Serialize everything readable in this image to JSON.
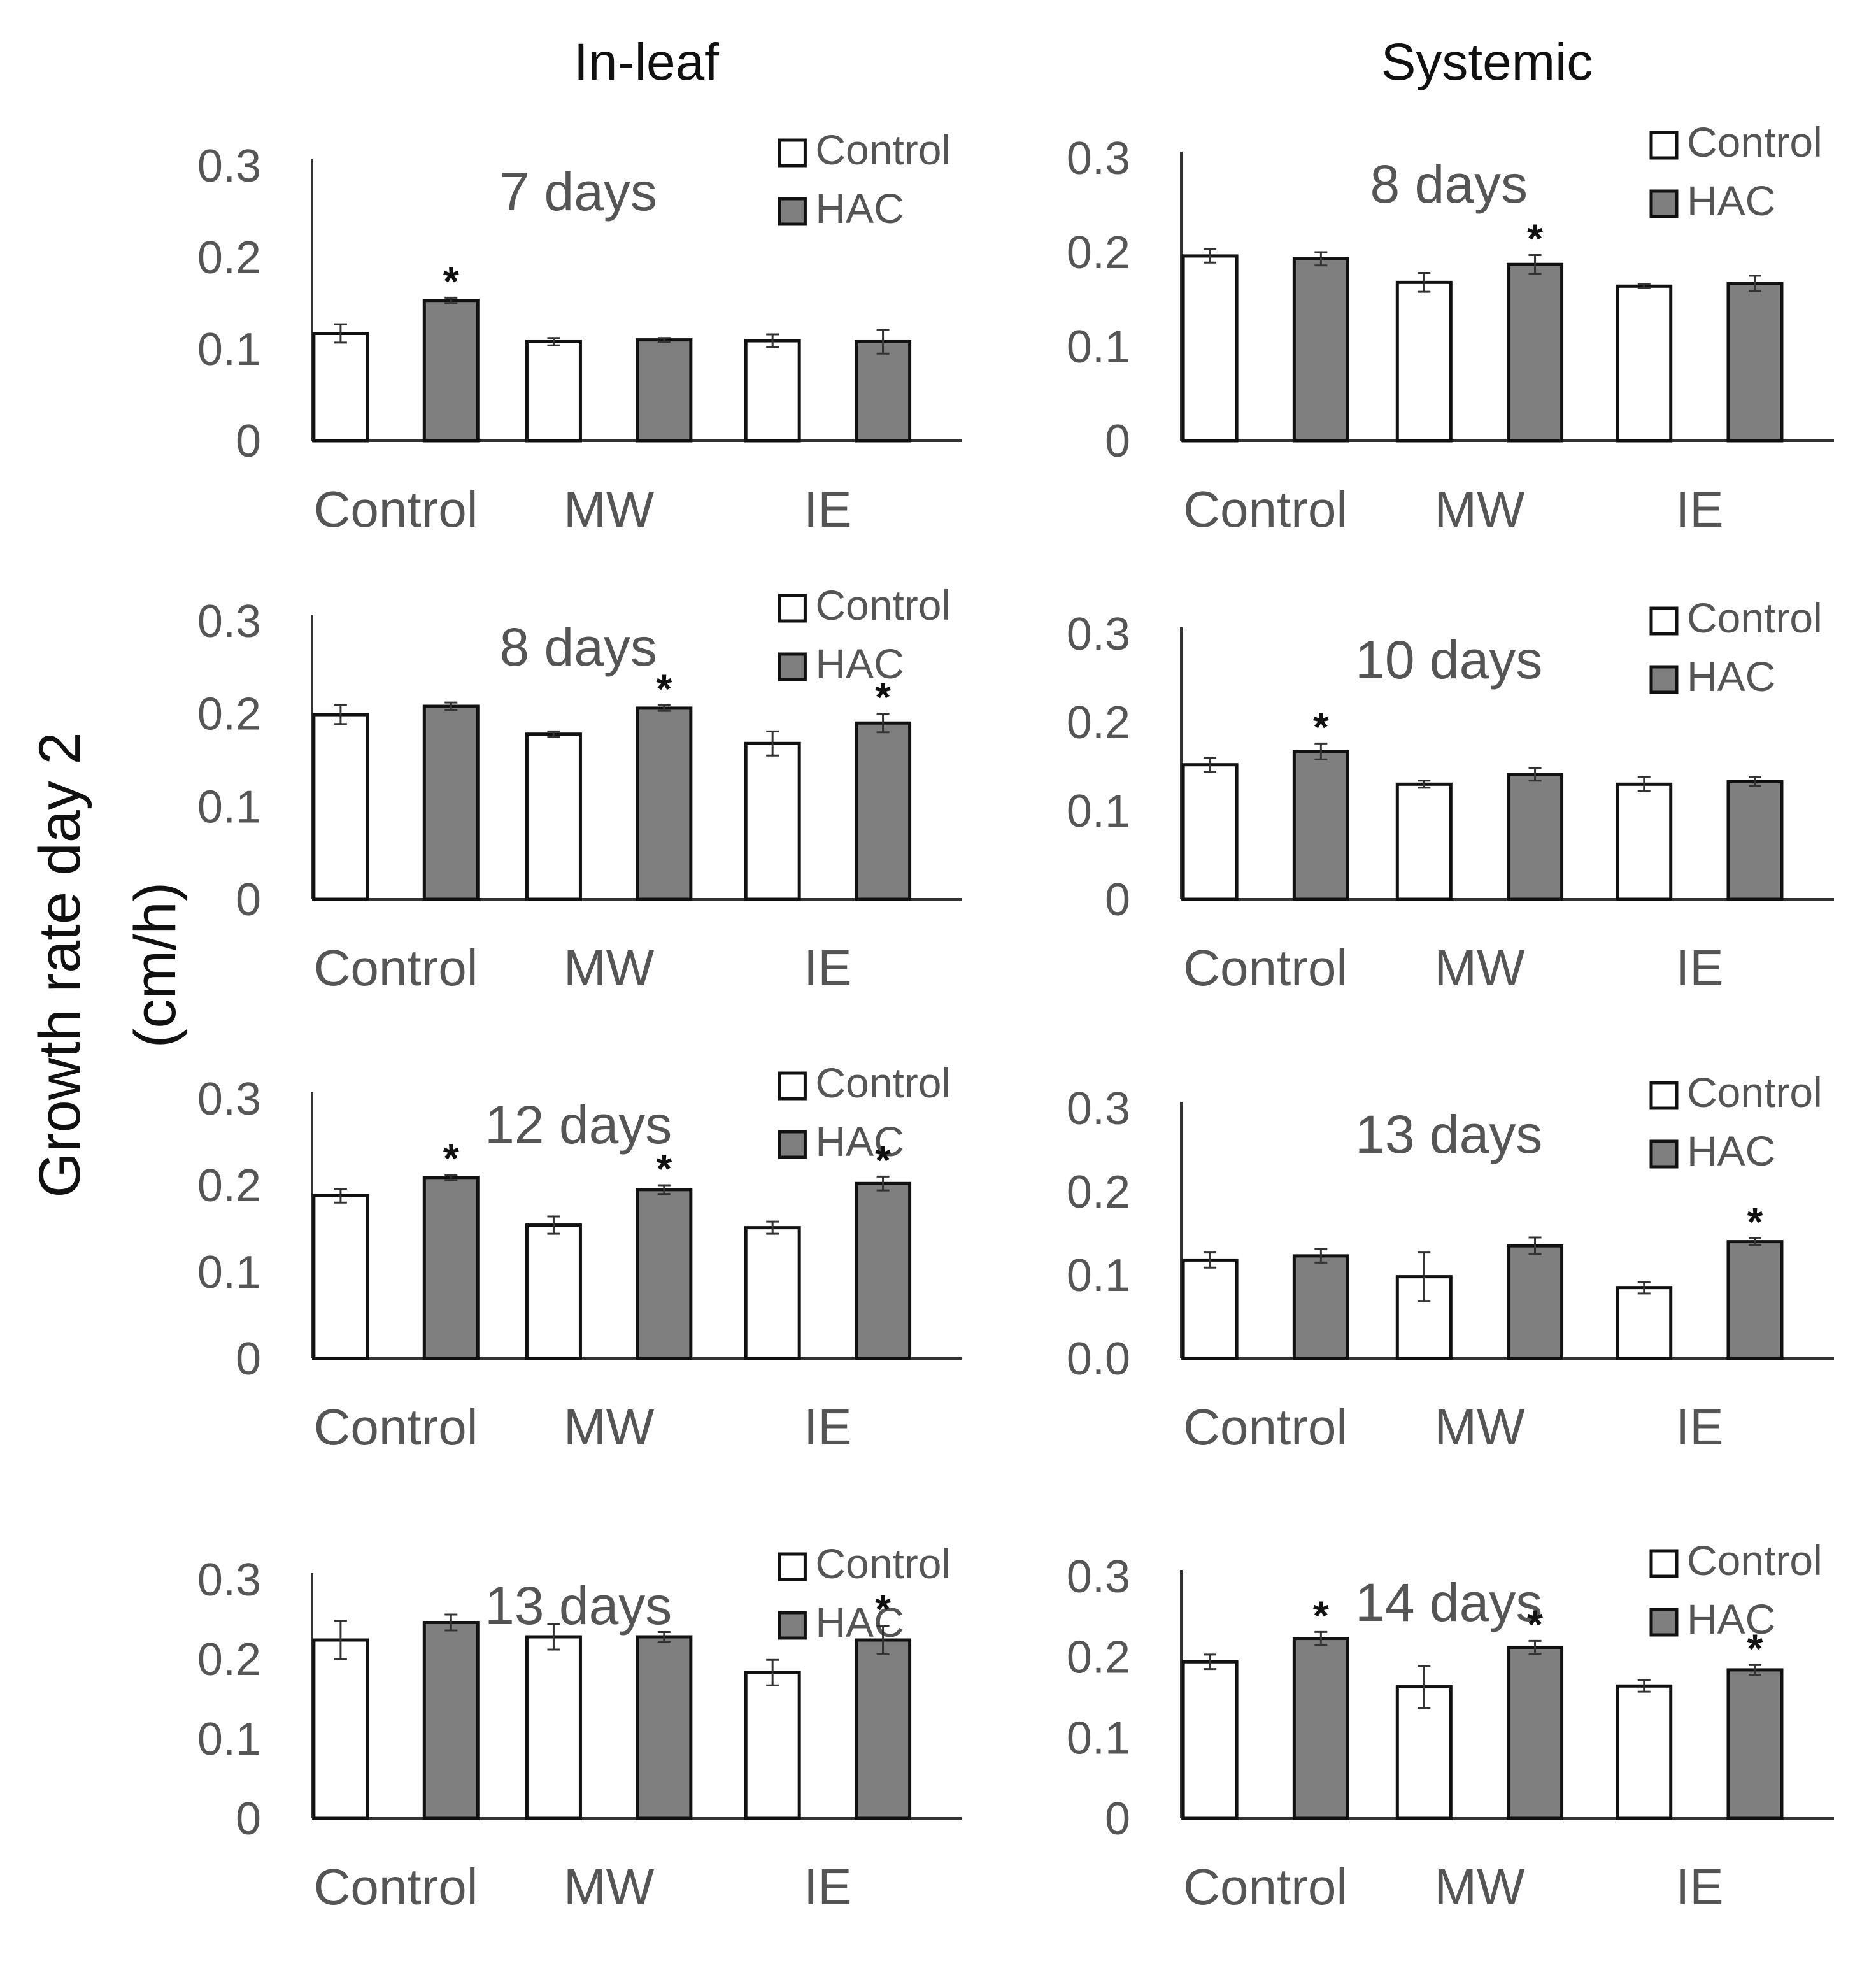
{
  "figure": {
    "columns": [
      "In-leaf",
      "Systemic"
    ],
    "ylabel_line1": "Growth rate day 2",
    "ylabel_line2": "(cm/h)"
  },
  "chart_data": [
    {
      "type": "bar",
      "panel": "In-leaf",
      "title": "7 days",
      "categories": [
        "Control",
        "MW",
        "IE"
      ],
      "ylim": [
        0,
        0.3
      ],
      "yticks": [
        "0",
        "0.1",
        "0.2",
        "0.3"
      ],
      "series": [
        {
          "name": "Control",
          "color": "#ffffff",
          "values": [
            0.117,
            0.108,
            0.109
          ],
          "errors": [
            0.01,
            0.004,
            0.007
          ]
        },
        {
          "name": "HAC",
          "color": "#7f7f7f",
          "values": [
            0.153,
            0.11,
            0.108
          ],
          "errors": [
            0.003,
            0.002,
            0.013
          ]
        }
      ],
      "significant": [
        [
          false,
          false,
          false
        ],
        [
          true,
          false,
          false
        ]
      ]
    },
    {
      "type": "bar",
      "panel": "Systemic",
      "title": "8 days",
      "categories": [
        "Control",
        "MW",
        "IE"
      ],
      "ylim": [
        0,
        0.3
      ],
      "yticks": [
        "0",
        "0.1",
        "0.2",
        "0.3"
      ],
      "series": [
        {
          "name": "Control",
          "color": "#ffffff",
          "values": [
            0.196,
            0.168,
            0.164
          ],
          "errors": [
            0.007,
            0.01,
            0.002
          ]
        },
        {
          "name": "HAC",
          "color": "#7f7f7f",
          "values": [
            0.193,
            0.187,
            0.167
          ],
          "errors": [
            0.007,
            0.01,
            0.008
          ]
        }
      ],
      "significant": [
        [
          false,
          false,
          false
        ],
        [
          false,
          true,
          false
        ]
      ]
    },
    {
      "type": "bar",
      "panel": "In-leaf",
      "title": "8 days",
      "categories": [
        "Control",
        "MW",
        "IE"
      ],
      "ylim": [
        0,
        0.3
      ],
      "yticks": [
        "0",
        "0.1",
        "0.2",
        "0.3"
      ],
      "series": [
        {
          "name": "Control",
          "color": "#ffffff",
          "values": [
            0.199,
            0.178,
            0.168
          ],
          "errors": [
            0.01,
            0.003,
            0.013
          ]
        },
        {
          "name": "HAC",
          "color": "#7f7f7f",
          "values": [
            0.208,
            0.206,
            0.19
          ],
          "errors": [
            0.004,
            0.003,
            0.01
          ]
        }
      ],
      "significant": [
        [
          false,
          false,
          false
        ],
        [
          false,
          true,
          true
        ]
      ]
    },
    {
      "type": "bar",
      "panel": "Systemic",
      "title": "10 days",
      "categories": [
        "Control",
        "MW",
        "IE"
      ],
      "ylim": [
        0,
        0.3
      ],
      "yticks": [
        "0",
        "0.1",
        "0.2",
        "0.3"
      ],
      "series": [
        {
          "name": "Control",
          "color": "#ffffff",
          "values": [
            0.152,
            0.13,
            0.13
          ],
          "errors": [
            0.008,
            0.004,
            0.008
          ]
        },
        {
          "name": "HAC",
          "color": "#7f7f7f",
          "values": [
            0.167,
            0.141,
            0.133
          ],
          "errors": [
            0.009,
            0.007,
            0.005
          ]
        }
      ],
      "significant": [
        [
          false,
          false,
          false
        ],
        [
          true,
          false,
          false
        ]
      ]
    },
    {
      "type": "bar",
      "panel": "In-leaf",
      "title": "12 days",
      "categories": [
        "Control",
        "MW",
        "IE"
      ],
      "ylim": [
        0,
        0.3
      ],
      "yticks": [
        "0",
        "0.1",
        "0.2",
        "0.3"
      ],
      "series": [
        {
          "name": "Control",
          "color": "#ffffff",
          "values": [
            0.188,
            0.154,
            0.151
          ],
          "errors": [
            0.008,
            0.01,
            0.007
          ]
        },
        {
          "name": "HAC",
          "color": "#7f7f7f",
          "values": [
            0.209,
            0.195,
            0.202
          ],
          "errors": [
            0.003,
            0.005,
            0.008
          ]
        }
      ],
      "significant": [
        [
          false,
          false,
          false
        ],
        [
          true,
          true,
          true
        ]
      ]
    },
    {
      "type": "bar",
      "panel": "Systemic",
      "title": "13 days",
      "categories": [
        "Control",
        "MW",
        "IE"
      ],
      "ylim": [
        0,
        0.3
      ],
      "yticks": [
        "0.0",
        "0.1",
        "0.2",
        "0.3"
      ],
      "series": [
        {
          "name": "Control",
          "color": "#ffffff",
          "values": [
            0.118,
            0.098,
            0.085
          ],
          "errors": [
            0.009,
            0.029,
            0.007
          ]
        },
        {
          "name": "HAC",
          "color": "#7f7f7f",
          "values": [
            0.123,
            0.135,
            0.14
          ],
          "errors": [
            0.008,
            0.01,
            0.004
          ]
        }
      ],
      "significant": [
        [
          false,
          false,
          false
        ],
        [
          false,
          false,
          true
        ]
      ]
    },
    {
      "type": "bar",
      "panel": "In-leaf",
      "title": "13 days",
      "categories": [
        "Control",
        "MW",
        "IE"
      ],
      "ylim": [
        0,
        0.3
      ],
      "yticks": [
        "0",
        "0.1",
        "0.2",
        "0.3"
      ],
      "series": [
        {
          "name": "Control",
          "color": "#ffffff",
          "values": [
            0.224,
            0.228,
            0.183
          ],
          "errors": [
            0.024,
            0.016,
            0.016
          ]
        },
        {
          "name": "HAC",
          "color": "#7f7f7f",
          "values": [
            0.246,
            0.228,
            0.224
          ],
          "errors": [
            0.01,
            0.006,
            0.018
          ]
        }
      ],
      "significant": [
        [
          false,
          false,
          false
        ],
        [
          false,
          false,
          true
        ]
      ]
    },
    {
      "type": "bar",
      "panel": "Systemic",
      "title": "14 days",
      "categories": [
        "Control",
        "MW",
        "IE"
      ],
      "ylim": [
        0,
        0.3
      ],
      "yticks": [
        "0",
        "0.1",
        "0.2",
        "0.3"
      ],
      "series": [
        {
          "name": "Control",
          "color": "#ffffff",
          "values": [
            0.194,
            0.163,
            0.164
          ],
          "errors": [
            0.009,
            0.026,
            0.007
          ]
        },
        {
          "name": "HAC",
          "color": "#7f7f7f",
          "values": [
            0.223,
            0.212,
            0.184
          ],
          "errors": [
            0.008,
            0.008,
            0.006
          ]
        }
      ],
      "significant": [
        [
          false,
          false,
          false
        ],
        [
          true,
          true,
          true
        ]
      ]
    }
  ]
}
